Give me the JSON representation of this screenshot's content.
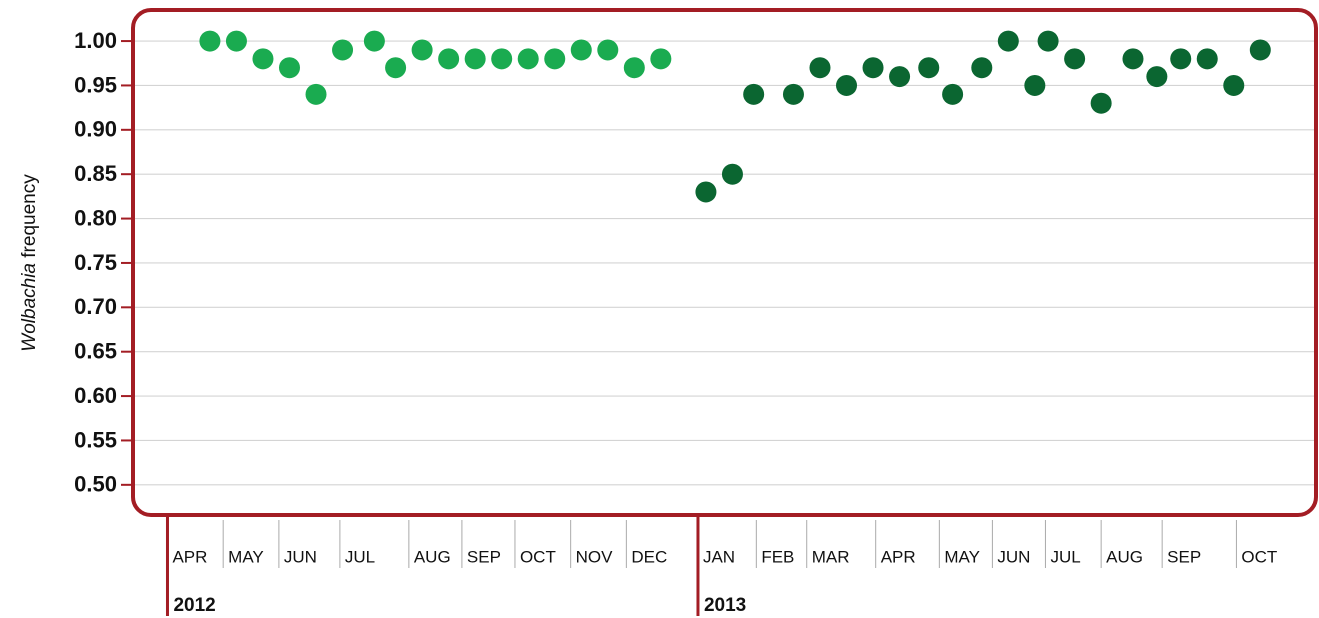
{
  "chart_data": {
    "type": "scatter",
    "ylabel": {
      "italic": "Wolbachia",
      "rest": "frequency"
    },
    "ylim": [
      0.466,
      1.035
    ],
    "yticks": [
      {
        "value": 0.5,
        "label": "0.50"
      },
      {
        "value": 0.55,
        "label": "0.55"
      },
      {
        "value": 0.6,
        "label": "0.60"
      },
      {
        "value": 0.65,
        "label": "0.65"
      },
      {
        "value": 0.7,
        "label": "0.70"
      },
      {
        "value": 0.75,
        "label": "0.75"
      },
      {
        "value": 0.8,
        "label": "0.80"
      },
      {
        "value": 0.85,
        "label": "0.85"
      },
      {
        "value": 0.9,
        "label": "0.90"
      },
      {
        "value": 0.95,
        "label": "0.95"
      },
      {
        "value": 1.0,
        "label": "1.00"
      }
    ],
    "grid": true,
    "xlim": [
      0,
      44.6
    ],
    "xticks": [
      {
        "value": 1.3,
        "label": "APR"
      },
      {
        "value": 3.4,
        "label": "MAY"
      },
      {
        "value": 5.5,
        "label": "JUN"
      },
      {
        "value": 7.8,
        "label": "JUL"
      },
      {
        "value": 10.4,
        "label": "AUG"
      },
      {
        "value": 12.4,
        "label": "SEP"
      },
      {
        "value": 14.4,
        "label": "OCT"
      },
      {
        "value": 16.5,
        "label": "NOV"
      },
      {
        "value": 18.6,
        "label": "DEC"
      },
      {
        "value": 21.3,
        "label": "JAN"
      },
      {
        "value": 23.5,
        "label": "FEB"
      },
      {
        "value": 25.4,
        "label": "MAR"
      },
      {
        "value": 28.0,
        "label": "APR"
      },
      {
        "value": 30.4,
        "label": "MAY"
      },
      {
        "value": 32.4,
        "label": "JUN"
      },
      {
        "value": 34.4,
        "label": "JUL"
      },
      {
        "value": 36.5,
        "label": "AUG"
      },
      {
        "value": 38.8,
        "label": "SEP"
      },
      {
        "value": 41.6,
        "label": "OCT"
      }
    ],
    "year_ticks": [
      {
        "value": 1.3,
        "label": "2012"
      },
      {
        "value": 21.3,
        "label": "2013"
      }
    ],
    "series": [
      {
        "name": "2012",
        "color": "#1aab50",
        "x": [
          2.9,
          3.9,
          4.9,
          5.9,
          6.9,
          7.9,
          9.1,
          9.9,
          10.9,
          11.9,
          12.9,
          13.9,
          14.9,
          15.9,
          16.9,
          17.9,
          18.9,
          19.9
        ],
        "values": [
          1.0,
          1.0,
          0.98,
          0.97,
          0.94,
          0.99,
          1.0,
          0.97,
          0.99,
          0.98,
          0.98,
          0.98,
          0.98,
          0.98,
          0.99,
          0.99,
          0.97,
          0.98
        ]
      },
      {
        "name": "2013",
        "color": "#0b6631",
        "x": [
          21.6,
          22.6,
          23.4,
          24.9,
          25.9,
          26.9,
          27.9,
          28.9,
          30.0,
          30.9,
          32.0,
          33.0,
          34.0,
          34.5,
          35.5,
          36.5,
          37.7,
          38.6,
          39.5,
          40.5,
          41.5,
          42.5
        ],
        "values": [
          0.83,
          0.85,
          0.94,
          0.94,
          0.97,
          0.95,
          0.97,
          0.96,
          0.97,
          0.94,
          0.97,
          1.0,
          0.95,
          1.0,
          0.98,
          0.93,
          0.98,
          0.96,
          0.98,
          0.98,
          0.95,
          0.99
        ]
      }
    ]
  }
}
